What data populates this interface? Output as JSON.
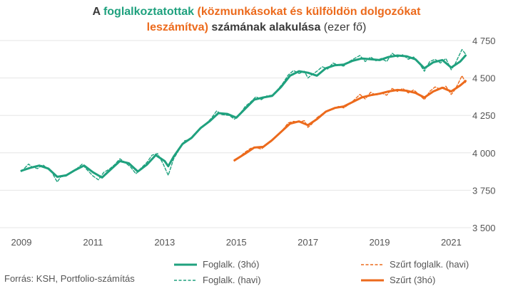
{
  "title": {
    "p1": "A ",
    "p2": "foglalkoztatottak",
    "p3": " (",
    "p4": "közmunkásokat és külföldön dolgozókat",
    "p5": "leszámítva",
    "p6": ")  ",
    "p7": "számának alakulása",
    "p8": " (ezer fő)"
  },
  "source": "Forrás: KSH, Portfolio-számítás",
  "colors": {
    "green": "#1fa17e",
    "orange": "#ec6a1c",
    "grid": "#e6e6e6"
  },
  "chart_data": {
    "type": "line",
    "xlim": [
      2009,
      2021.45
    ],
    "ylim": [
      3500,
      4750
    ],
    "x_ticks": [
      {
        "value": 2009,
        "label": "2009"
      },
      {
        "value": 2011,
        "label": "2011"
      },
      {
        "value": 2013,
        "label": "2013"
      },
      {
        "value": 2015,
        "label": "2015"
      },
      {
        "value": 2017,
        "label": "2017"
      },
      {
        "value": 2019,
        "label": "2019"
      },
      {
        "value": 2021,
        "label": "2021"
      }
    ],
    "y_ticks": [
      {
        "value": 3500,
        "label": "3 500"
      },
      {
        "value": 3750,
        "label": "3 750"
      },
      {
        "value": 4000,
        "label": "4 000"
      },
      {
        "value": 4250,
        "label": "4 250"
      },
      {
        "value": 4500,
        "label": "4 500"
      },
      {
        "value": 4750,
        "label": "4 750"
      }
    ],
    "series": [
      {
        "name": "Foglalk. (3hó)",
        "color": "#1fa17e",
        "dashed": false,
        "width": 3,
        "points": [
          [
            2009.0,
            3880
          ],
          [
            2009.25,
            3900
          ],
          [
            2009.5,
            3915
          ],
          [
            2009.75,
            3895
          ],
          [
            2010.0,
            3840
          ],
          [
            2010.25,
            3850
          ],
          [
            2010.5,
            3885
          ],
          [
            2010.75,
            3915
          ],
          [
            2011.0,
            3870
          ],
          [
            2011.25,
            3835
          ],
          [
            2011.5,
            3890
          ],
          [
            2011.75,
            3945
          ],
          [
            2012.0,
            3930
          ],
          [
            2012.25,
            3875
          ],
          [
            2012.5,
            3920
          ],
          [
            2012.75,
            3985
          ],
          [
            2013.0,
            3945
          ],
          [
            2013.1,
            3910
          ],
          [
            2013.25,
            3975
          ],
          [
            2013.5,
            4060
          ],
          [
            2013.75,
            4100
          ],
          [
            2014.0,
            4165
          ],
          [
            2014.25,
            4210
          ],
          [
            2014.5,
            4265
          ],
          [
            2014.75,
            4260
          ],
          [
            2015.0,
            4235
          ],
          [
            2015.25,
            4295
          ],
          [
            2015.5,
            4355
          ],
          [
            2015.75,
            4370
          ],
          [
            2016.0,
            4380
          ],
          [
            2016.25,
            4440
          ],
          [
            2016.5,
            4515
          ],
          [
            2016.75,
            4545
          ],
          [
            2017.0,
            4535
          ],
          [
            2017.25,
            4515
          ],
          [
            2017.5,
            4565
          ],
          [
            2017.75,
            4585
          ],
          [
            2018.0,
            4590
          ],
          [
            2018.25,
            4615
          ],
          [
            2018.5,
            4630
          ],
          [
            2018.75,
            4625
          ],
          [
            2019.0,
            4620
          ],
          [
            2019.25,
            4640
          ],
          [
            2019.5,
            4650
          ],
          [
            2019.75,
            4645
          ],
          [
            2020.0,
            4625
          ],
          [
            2020.25,
            4565
          ],
          [
            2020.5,
            4605
          ],
          [
            2020.75,
            4620
          ],
          [
            2021.0,
            4570
          ],
          [
            2021.25,
            4610
          ],
          [
            2021.4,
            4650
          ]
        ]
      },
      {
        "name": "Foglalk. (havi)",
        "color": "#1fa17e",
        "dashed": true,
        "width": 1.4,
        "points": [
          [
            2009.0,
            3875
          ],
          [
            2009.1,
            3900
          ],
          [
            2009.2,
            3925
          ],
          [
            2009.3,
            3905
          ],
          [
            2009.45,
            3895
          ],
          [
            2009.6,
            3920
          ],
          [
            2009.7,
            3900
          ],
          [
            2009.85,
            3870
          ],
          [
            2010.0,
            3805
          ],
          [
            2010.1,
            3840
          ],
          [
            2010.25,
            3845
          ],
          [
            2010.4,
            3875
          ],
          [
            2010.55,
            3895
          ],
          [
            2010.7,
            3925
          ],
          [
            2010.8,
            3895
          ],
          [
            2011.0,
            3845
          ],
          [
            2011.15,
            3820
          ],
          [
            2011.3,
            3870
          ],
          [
            2011.45,
            3890
          ],
          [
            2011.6,
            3920
          ],
          [
            2011.75,
            3960
          ],
          [
            2011.9,
            3935
          ],
          [
            2012.05,
            3905
          ],
          [
            2012.2,
            3860
          ],
          [
            2012.35,
            3900
          ],
          [
            2012.5,
            3935
          ],
          [
            2012.65,
            3985
          ],
          [
            2012.8,
            3995
          ],
          [
            2012.95,
            3930
          ],
          [
            2013.1,
            3850
          ],
          [
            2013.25,
            3960
          ],
          [
            2013.4,
            4020
          ],
          [
            2013.55,
            4080
          ],
          [
            2013.7,
            4090
          ],
          [
            2013.85,
            4130
          ],
          [
            2014.0,
            4160
          ],
          [
            2014.15,
            4195
          ],
          [
            2014.3,
            4230
          ],
          [
            2014.45,
            4280
          ],
          [
            2014.6,
            4255
          ],
          [
            2014.8,
            4250
          ],
          [
            2014.95,
            4225
          ],
          [
            2015.1,
            4260
          ],
          [
            2015.25,
            4310
          ],
          [
            2015.4,
            4340
          ],
          [
            2015.55,
            4375
          ],
          [
            2015.7,
            4355
          ],
          [
            2015.85,
            4380
          ],
          [
            2016.0,
            4385
          ],
          [
            2016.15,
            4420
          ],
          [
            2016.3,
            4465
          ],
          [
            2016.45,
            4520
          ],
          [
            2016.6,
            4550
          ],
          [
            2016.75,
            4530
          ],
          [
            2016.9,
            4545
          ],
          [
            2017.0,
            4500
          ],
          [
            2017.1,
            4520
          ],
          [
            2017.25,
            4545
          ],
          [
            2017.4,
            4575
          ],
          [
            2017.55,
            4560
          ],
          [
            2017.7,
            4600
          ],
          [
            2017.85,
            4585
          ],
          [
            2018.0,
            4580
          ],
          [
            2018.15,
            4610
          ],
          [
            2018.3,
            4630
          ],
          [
            2018.45,
            4650
          ],
          [
            2018.6,
            4610
          ],
          [
            2018.75,
            4640
          ],
          [
            2018.9,
            4615
          ],
          [
            2019.05,
            4630
          ],
          [
            2019.2,
            4610
          ],
          [
            2019.35,
            4665
          ],
          [
            2019.5,
            4640
          ],
          [
            2019.65,
            4655
          ],
          [
            2019.8,
            4625
          ],
          [
            2019.95,
            4640
          ],
          [
            2020.1,
            4600
          ],
          [
            2020.25,
            4545
          ],
          [
            2020.4,
            4610
          ],
          [
            2020.55,
            4625
          ],
          [
            2020.7,
            4600
          ],
          [
            2020.85,
            4630
          ],
          [
            2021.0,
            4555
          ],
          [
            2021.1,
            4590
          ],
          [
            2021.2,
            4640
          ],
          [
            2021.3,
            4690
          ],
          [
            2021.4,
            4660
          ]
        ]
      },
      {
        "name": "Szűrt foglalk. (havi)",
        "color": "#ec6a1c",
        "dashed": true,
        "width": 1.4,
        "points": [
          [
            2014.95,
            3945
          ],
          [
            2015.1,
            3975
          ],
          [
            2015.25,
            4005
          ],
          [
            2015.4,
            4030
          ],
          [
            2015.55,
            4035
          ],
          [
            2015.7,
            4025
          ],
          [
            2015.85,
            4055
          ],
          [
            2016.0,
            4080
          ],
          [
            2016.15,
            4120
          ],
          [
            2016.3,
            4155
          ],
          [
            2016.45,
            4200
          ],
          [
            2016.6,
            4210
          ],
          [
            2016.75,
            4205
          ],
          [
            2016.9,
            4215
          ],
          [
            2017.0,
            4170
          ],
          [
            2017.1,
            4190
          ],
          [
            2017.25,
            4235
          ],
          [
            2017.4,
            4260
          ],
          [
            2017.55,
            4285
          ],
          [
            2017.7,
            4290
          ],
          [
            2017.85,
            4310
          ],
          [
            2018.0,
            4300
          ],
          [
            2018.15,
            4325
          ],
          [
            2018.3,
            4355
          ],
          [
            2018.45,
            4390
          ],
          [
            2018.6,
            4360
          ],
          [
            2018.75,
            4405
          ],
          [
            2018.9,
            4385
          ],
          [
            2019.05,
            4400
          ],
          [
            2019.2,
            4385
          ],
          [
            2019.35,
            4430
          ],
          [
            2019.5,
            4410
          ],
          [
            2019.65,
            4430
          ],
          [
            2019.8,
            4400
          ],
          [
            2019.95,
            4420
          ],
          [
            2020.1,
            4390
          ],
          [
            2020.25,
            4355
          ],
          [
            2020.4,
            4410
          ],
          [
            2020.55,
            4440
          ],
          [
            2020.7,
            4425
          ],
          [
            2020.85,
            4445
          ],
          [
            2021.0,
            4390
          ],
          [
            2021.1,
            4420
          ],
          [
            2021.2,
            4465
          ],
          [
            2021.3,
            4515
          ],
          [
            2021.4,
            4470
          ]
        ]
      },
      {
        "name": "Szűrt (3hó)",
        "color": "#ec6a1c",
        "dashed": false,
        "width": 3,
        "points": [
          [
            2014.95,
            3950
          ],
          [
            2015.25,
            3995
          ],
          [
            2015.5,
            4035
          ],
          [
            2015.75,
            4040
          ],
          [
            2016.0,
            4085
          ],
          [
            2016.25,
            4140
          ],
          [
            2016.5,
            4195
          ],
          [
            2016.75,
            4210
          ],
          [
            2017.0,
            4185
          ],
          [
            2017.25,
            4225
          ],
          [
            2017.5,
            4275
          ],
          [
            2017.75,
            4300
          ],
          [
            2018.0,
            4310
          ],
          [
            2018.25,
            4340
          ],
          [
            2018.5,
            4370
          ],
          [
            2018.75,
            4385
          ],
          [
            2019.0,
            4395
          ],
          [
            2019.25,
            4410
          ],
          [
            2019.5,
            4420
          ],
          [
            2019.75,
            4415
          ],
          [
            2020.0,
            4400
          ],
          [
            2020.25,
            4370
          ],
          [
            2020.5,
            4410
          ],
          [
            2020.75,
            4435
          ],
          [
            2021.0,
            4410
          ],
          [
            2021.25,
            4450
          ],
          [
            2021.4,
            4480
          ]
        ]
      }
    ]
  }
}
